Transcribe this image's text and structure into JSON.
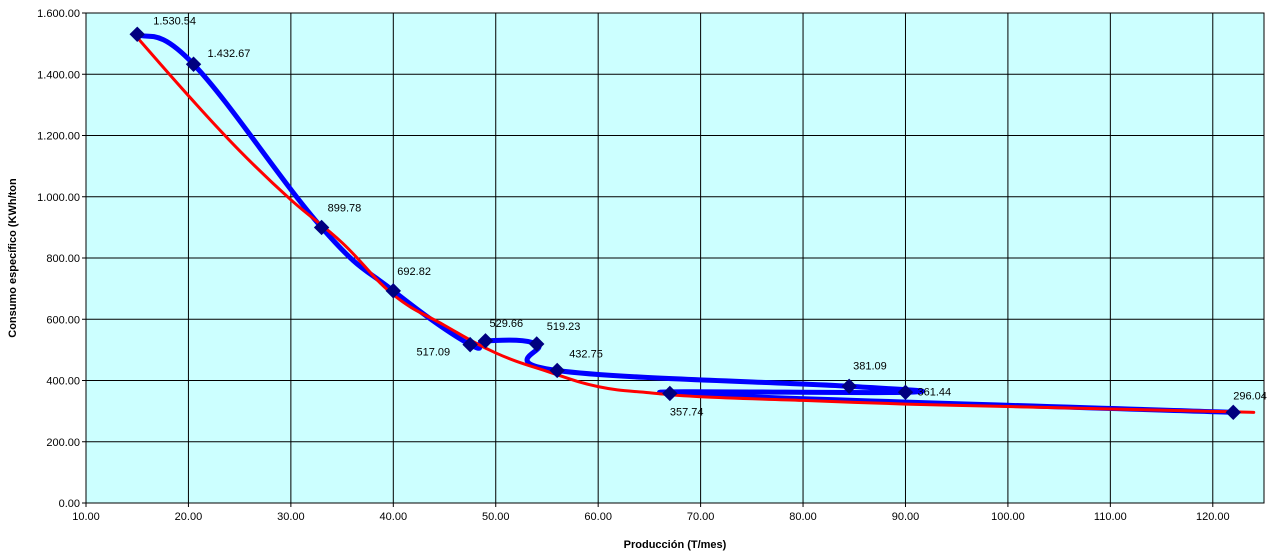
{
  "chart_data": {
    "type": "line",
    "title": "",
    "xlabel": "Producción (T/mes)",
    "ylabel": "Consumo específico (KWh/ton",
    "xlim": [
      10,
      125
    ],
    "ylim": [
      0,
      1600
    ],
    "x_ticks": [
      "10.00",
      "20.00",
      "30.00",
      "40.00",
      "50.00",
      "60.00",
      "70.00",
      "80.00",
      "90.00",
      "100.00",
      "110.00",
      "120.00"
    ],
    "y_ticks": [
      "0.00",
      "200.00",
      "400.00",
      "600.00",
      "800.00",
      "1.000.00",
      "1.200.00",
      "1.400.00",
      "1.600.00"
    ],
    "grid": true,
    "plot_background": "#ccffff",
    "series": [
      {
        "color": "#0000ff",
        "marker_color": "#000080",
        "points": [
          {
            "x": 15.0,
            "y": 1530.54,
            "label": "1.530.54"
          },
          {
            "x": 20.5,
            "y": 1432.67,
            "label": "1.432.67"
          },
          {
            "x": 33.0,
            "y": 899.78,
            "label": "899.78"
          },
          {
            "x": 40.0,
            "y": 692.82,
            "label": "692.82"
          },
          {
            "x": 47.5,
            "y": 517.09,
            "label": "517.09"
          },
          {
            "x": 49.0,
            "y": 529.66,
            "label": "529.66"
          },
          {
            "x": 54.0,
            "y": 519.23,
            "label": "519.23"
          },
          {
            "x": 56.0,
            "y": 432.75,
            "label": "432.75"
          },
          {
            "x": 84.5,
            "y": 381.09,
            "label": "381.09"
          },
          {
            "x": 90.0,
            "y": 361.44,
            "label": "361.44"
          },
          {
            "x": 67.0,
            "y": 357.74,
            "label": "357.74"
          },
          {
            "x": 122.0,
            "y": 296.04,
            "label": "296.04"
          }
        ]
      },
      {
        "color": "#ff0000",
        "points": [
          {
            "x": 15.0,
            "y": 1520
          },
          {
            "x": 20.0,
            "y": 1330
          },
          {
            "x": 25.0,
            "y": 1150
          },
          {
            "x": 30.0,
            "y": 990
          },
          {
            "x": 35.0,
            "y": 850
          },
          {
            "x": 40.0,
            "y": 680
          },
          {
            "x": 45.0,
            "y": 580
          },
          {
            "x": 50.0,
            "y": 490
          },
          {
            "x": 55.0,
            "y": 430
          },
          {
            "x": 60.0,
            "y": 380
          },
          {
            "x": 65.0,
            "y": 360
          },
          {
            "x": 70.0,
            "y": 347
          },
          {
            "x": 80.0,
            "y": 335
          },
          {
            "x": 90.0,
            "y": 323
          },
          {
            "x": 100.0,
            "y": 315
          },
          {
            "x": 110.0,
            "y": 307
          },
          {
            "x": 120.0,
            "y": 299
          },
          {
            "x": 124.0,
            "y": 296
          }
        ]
      }
    ]
  }
}
